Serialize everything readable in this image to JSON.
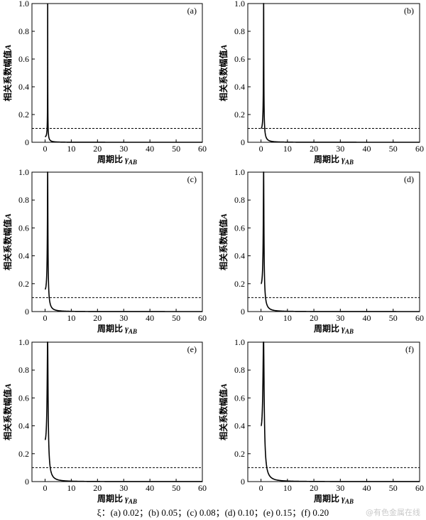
{
  "caption": "ξ：(a) 0.02；(b) 0.05；(c) 0.08；(d) 0.10；(e) 0.15；(f) 0.20",
  "watermark": "@有色金属在线",
  "chart_data": [
    {
      "panel": "(a)",
      "type": "line",
      "xi": 0.02,
      "xlabel": "周期比 γAB",
      "ylabel": "相关系数幅值A",
      "xlim": [
        -5,
        60
      ],
      "ylim": [
        0,
        1.0
      ],
      "xticks": [
        0,
        10,
        20,
        30,
        40,
        50,
        60
      ],
      "yticks": [
        0,
        0.2,
        0.4,
        0.6,
        0.8,
        1.0
      ],
      "threshold": 0.1,
      "grid": false
    },
    {
      "panel": "(b)",
      "type": "line",
      "xi": 0.05,
      "xlabel": "周期比 γAB",
      "ylabel": "相关系数幅值A",
      "xlim": [
        -5,
        60
      ],
      "ylim": [
        0,
        1.0
      ],
      "xticks": [
        0,
        10,
        20,
        30,
        40,
        50,
        60
      ],
      "yticks": [
        0,
        0.2,
        0.4,
        0.6,
        0.8,
        1.0
      ],
      "threshold": 0.1,
      "grid": false
    },
    {
      "panel": "(c)",
      "type": "line",
      "xi": 0.08,
      "xlabel": "周期比 γAB",
      "ylabel": "相关系数幅值A",
      "xlim": [
        -5,
        60
      ],
      "ylim": [
        0,
        1.0
      ],
      "xticks": [
        0,
        10,
        20,
        30,
        40,
        50,
        60
      ],
      "yticks": [
        0,
        0.2,
        0.4,
        0.6,
        0.8,
        1.0
      ],
      "threshold": 0.1,
      "grid": false
    },
    {
      "panel": "(d)",
      "type": "line",
      "xi": 0.1,
      "xlabel": "周期比 γAB",
      "ylabel": "相关系数幅值A",
      "xlim": [
        -5,
        60
      ],
      "ylim": [
        0,
        1.0
      ],
      "xticks": [
        0,
        10,
        20,
        30,
        40,
        50,
        60
      ],
      "yticks": [
        0,
        0.2,
        0.4,
        0.6,
        0.8,
        1.0
      ],
      "threshold": 0.1,
      "grid": false
    },
    {
      "panel": "(e)",
      "type": "line",
      "xi": 0.15,
      "xlabel": "周期比 γAB",
      "ylabel": "相关系数幅值A",
      "xlim": [
        -5,
        60
      ],
      "ylim": [
        0,
        1.0
      ],
      "xticks": [
        0,
        10,
        20,
        30,
        40,
        50,
        60
      ],
      "yticks": [
        0,
        0.2,
        0.4,
        0.6,
        0.8,
        1.0
      ],
      "threshold": 0.1,
      "grid": false
    },
    {
      "panel": "(f)",
      "type": "line",
      "xi": 0.2,
      "xlabel": "周期比 γAB",
      "ylabel": "相关系数幅值A",
      "xlim": [
        -5,
        60
      ],
      "ylim": [
        0,
        1.0
      ],
      "xticks": [
        0,
        10,
        20,
        30,
        40,
        50,
        60
      ],
      "yticks": [
        0,
        0.2,
        0.4,
        0.6,
        0.8,
        1.0
      ],
      "threshold": 0.1,
      "grid": false
    }
  ]
}
